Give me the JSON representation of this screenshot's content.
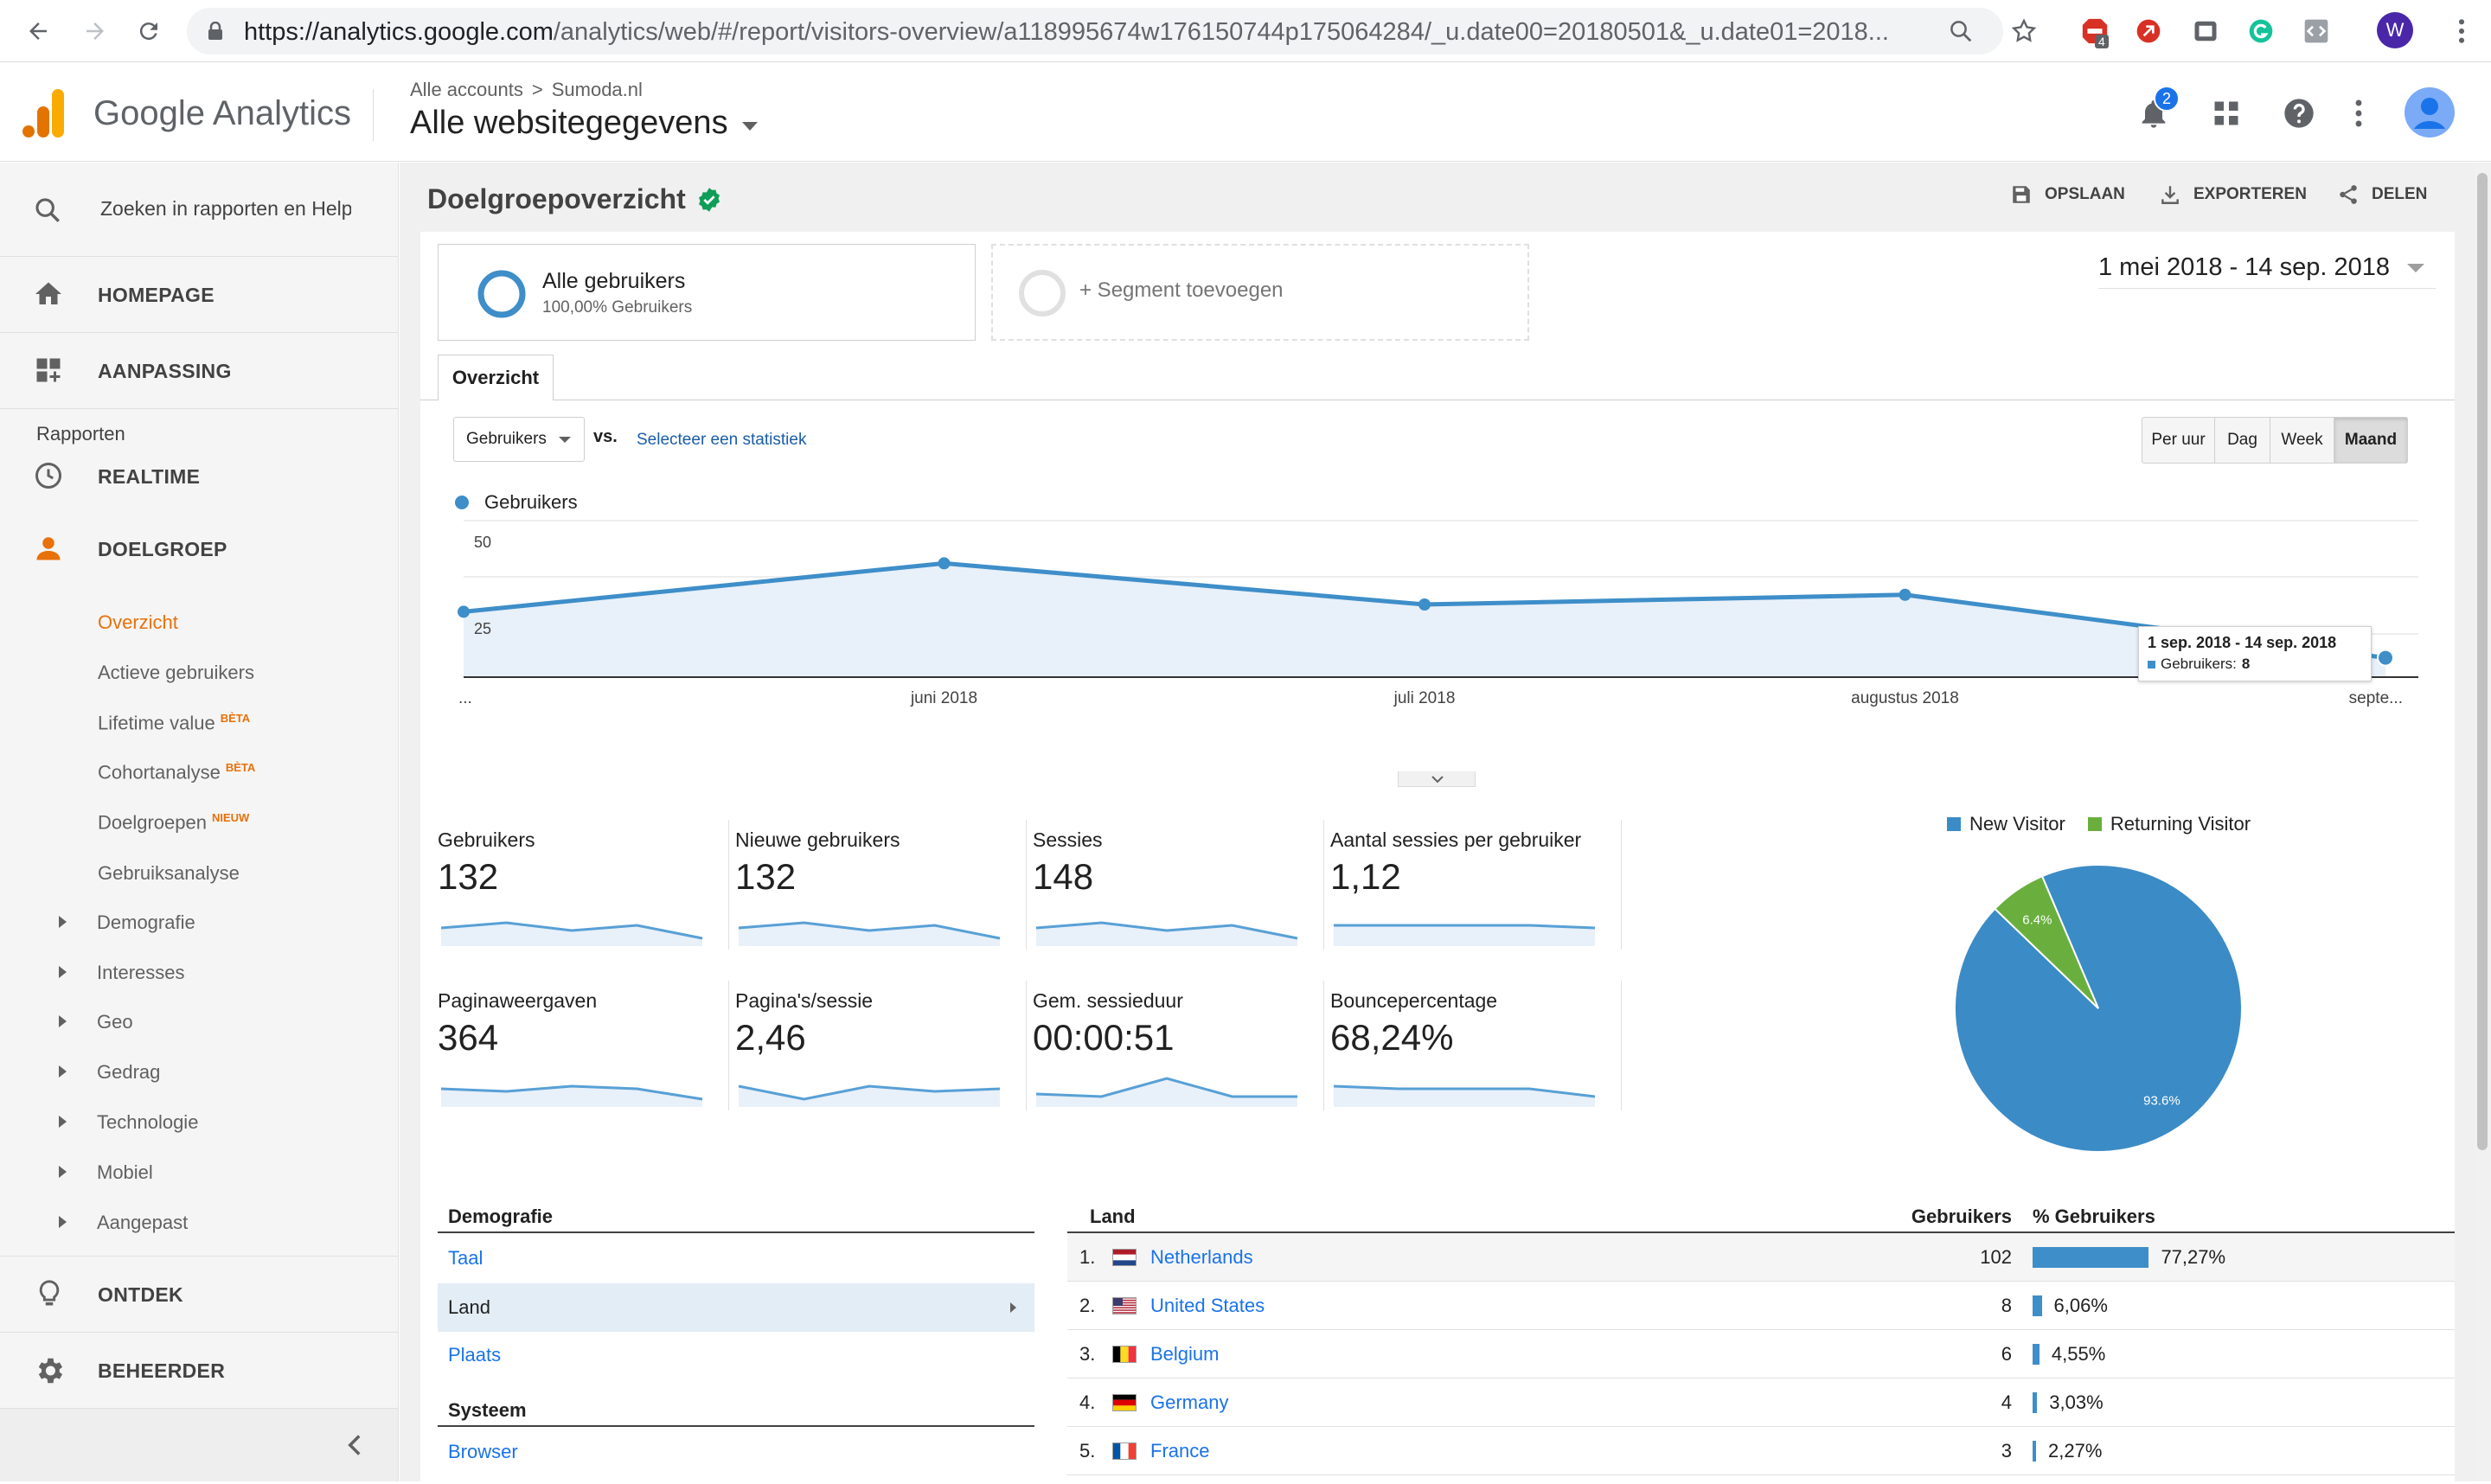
{
  "browser": {
    "url_host": "https://analytics.google.com",
    "url_path": "/analytics/web/#/report/visitors-overview/a118995674w176150744p175064284/_u.date00=20180501&_u.date01=2018...",
    "extension_badge": "4",
    "profile_initial": "W"
  },
  "header": {
    "product_name": "Google Analytics",
    "breadcrumb_root": "Alle accounts",
    "breadcrumb_separator": ">",
    "breadcrumb_account": "Sumoda.nl",
    "view_name": "Alle websitegegevens",
    "notification_count": "2"
  },
  "sidebar": {
    "search_placeholder": "Zoeken in rapporten en Help",
    "homepage": "HOMEPAGE",
    "customization": "AANPASSING",
    "reports_heading": "Rapporten",
    "realtime": "REALTIME",
    "audience": "DOELGROEP",
    "audience_items": [
      {
        "label": "Overzicht",
        "badge": ""
      },
      {
        "label": "Actieve gebruikers",
        "badge": ""
      },
      {
        "label": "Lifetime value",
        "badge": "BÈTA"
      },
      {
        "label": "Cohortanalyse",
        "badge": "BÈTA"
      },
      {
        "label": "Doelgroepen",
        "badge": "NIEUW"
      },
      {
        "label": "Gebruiksanalyse",
        "badge": ""
      }
    ],
    "expandables": [
      "Demografie",
      "Interesses",
      "Geo",
      "Gedrag",
      "Technologie",
      "Mobiel",
      "Aangepast"
    ],
    "discover": "ONTDEK",
    "admin": "BEHEERDER"
  },
  "report": {
    "title": "Doelgroepoverzicht",
    "save_label": "OPSLAAN",
    "export_label": "EXPORTEREN",
    "share_label": "DELEN",
    "segment_name": "Alle gebruikers",
    "segment_pct": "100,00% Gebruikers",
    "add_segment": "+ Segment toevoegen",
    "date_range": "1 mei 2018 - 14 sep. 2018",
    "tab_overview": "Overzicht",
    "metric_select": "Gebruikers",
    "vs_label": "vs.",
    "select_stat": "Selecteer een statistiek",
    "granularity": [
      "Per uur",
      "Dag",
      "Week",
      "Maand"
    ],
    "granularity_active": "Maand",
    "legend_label": "Gebruikers",
    "tooltip_title": "1 sep. 2018 - 14 sep. 2018",
    "tooltip_metric": "Gebruikers:",
    "tooltip_value": "8"
  },
  "chart_data": [
    {
      "type": "area",
      "series": [
        {
          "name": "Gebruikers",
          "values": [
            27,
            47,
            30,
            34,
            8
          ]
        }
      ],
      "x": [
        "mei 2018",
        "juni 2018",
        "juli 2018",
        "augustus 2018",
        "september 2018"
      ],
      "x_tick_labels": [
        "...",
        "juni 2018",
        "juli 2018",
        "augustus 2018",
        "septe..."
      ],
      "y_tick_labels": [
        "50",
        "25"
      ],
      "ylim": [
        0,
        50
      ],
      "color": "#3e8ec9",
      "grid": true
    },
    {
      "type": "pie",
      "labels": [
        "New Visitor",
        "Returning Visitor"
      ],
      "values": [
        93.6,
        6.4
      ],
      "value_labels": [
        "93.6%",
        "6.4%"
      ],
      "colors": [
        "#3b8bc6",
        "#6aaf3e"
      ],
      "legend": "top"
    }
  ],
  "kpis": [
    {
      "title": "Gebruikers",
      "value": "132",
      "spark": [
        5,
        3,
        6,
        4,
        9
      ]
    },
    {
      "title": "Nieuwe gebruikers",
      "value": "132",
      "spark": [
        5,
        3,
        6,
        4,
        9
      ]
    },
    {
      "title": "Sessies",
      "value": "148",
      "spark": [
        5,
        3,
        6,
        4,
        9
      ]
    },
    {
      "title": "Aantal sessies per gebruiker",
      "value": "1,12",
      "spark": [
        4,
        4,
        4,
        4,
        5
      ]
    },
    {
      "title": "Paginaweergaven",
      "value": "364",
      "spark": [
        5,
        6,
        4,
        5,
        9
      ]
    },
    {
      "title": "Pagina's/sessie",
      "value": "2,46",
      "spark": [
        4,
        9,
        4,
        6,
        5
      ]
    },
    {
      "title": "Gem. sessieduur",
      "value": "00:00:51",
      "spark": [
        7,
        8,
        1,
        8,
        8
      ]
    },
    {
      "title": "Bouncepercentage",
      "value": "68,24%",
      "spark": [
        4,
        5,
        5,
        5,
        8
      ]
    }
  ],
  "demography": {
    "heading": "Demografie",
    "items": [
      "Taal",
      "Land",
      "Plaats"
    ],
    "active": "Land",
    "system_heading": "Systeem",
    "system_items": [
      "Browser"
    ]
  },
  "country_table": {
    "col_country": "Land",
    "col_users": "Gebruikers",
    "col_pct": "% Gebruikers",
    "rows": [
      {
        "rank": "1.",
        "country": "Netherlands",
        "users": "102",
        "pct": "77,27%",
        "pct_value": 77.27
      },
      {
        "rank": "2.",
        "country": "United States",
        "users": "8",
        "pct": "6,06%",
        "pct_value": 6.06
      },
      {
        "rank": "3.",
        "country": "Belgium",
        "users": "6",
        "pct": "4,55%",
        "pct_value": 4.55
      },
      {
        "rank": "4.",
        "country": "Germany",
        "users": "4",
        "pct": "3,03%",
        "pct_value": 3.03
      },
      {
        "rank": "5.",
        "country": "France",
        "users": "3",
        "pct": "2,27%",
        "pct_value": 2.27
      }
    ]
  },
  "colors": {
    "ga_orange": "#e8710a",
    "ga_blue": "#3e8ec9",
    "link_blue": "#1a73e8",
    "check_green": "#0f9d58"
  }
}
